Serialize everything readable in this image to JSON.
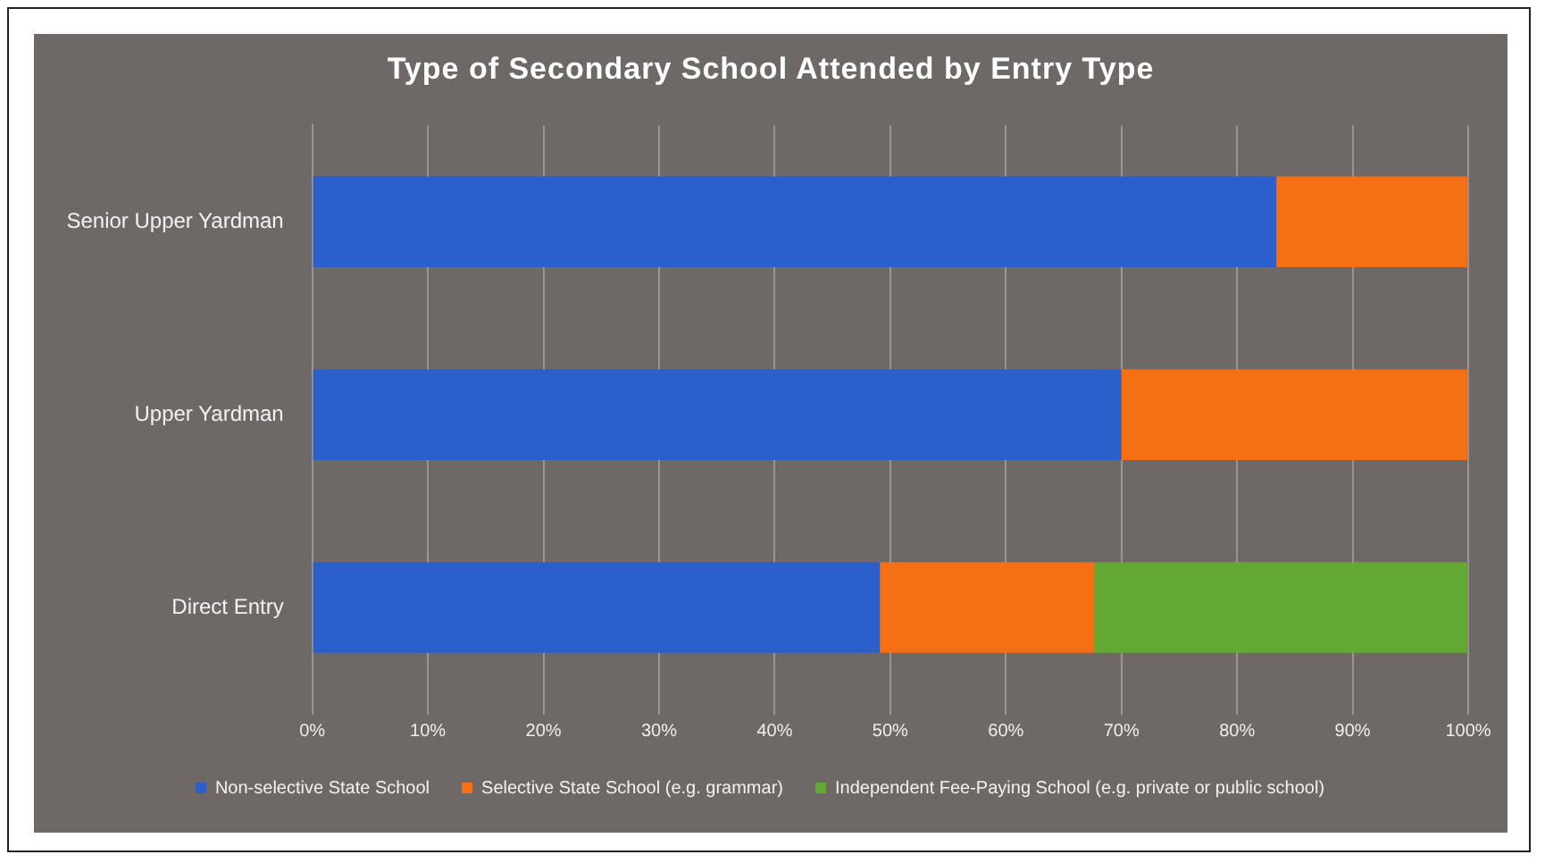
{
  "chart_data": {
    "type": "bar",
    "orientation": "horizontal",
    "stacked": true,
    "title": "Type of Secondary School Attended by Entry Type",
    "categories": [
      "Senior Upper Yardman",
      "Upper Yardman",
      "Direct Entry"
    ],
    "series": [
      {
        "name": "Non-selective State School",
        "color": "#2a5fcc",
        "values": [
          83.4,
          70,
          49.1
        ]
      },
      {
        "name": "Selective State School (e.g. grammar)",
        "color": "#f57014",
        "values": [
          16.6,
          30,
          18.6
        ]
      },
      {
        "name": "Independent Fee-Paying School (e.g. private or public school)",
        "color": "#62a833",
        "values": [
          null,
          null,
          32.3
        ]
      }
    ],
    "xlim": [
      0,
      100
    ],
    "xticks": [
      {
        "value": 0,
        "label": "0%"
      },
      {
        "value": 10,
        "label": "10%"
      },
      {
        "value": 20,
        "label": "20%"
      },
      {
        "value": 30,
        "label": "30%"
      },
      {
        "value": 40,
        "label": "40%"
      },
      {
        "value": 50,
        "label": "50%"
      },
      {
        "value": 60,
        "label": "60%"
      },
      {
        "value": 70,
        "label": "70%"
      },
      {
        "value": 80,
        "label": "80%"
      },
      {
        "value": 90,
        "label": "90%"
      },
      {
        "value": 100,
        "label": "100%"
      }
    ],
    "grid": "x",
    "legend": "bottom"
  }
}
